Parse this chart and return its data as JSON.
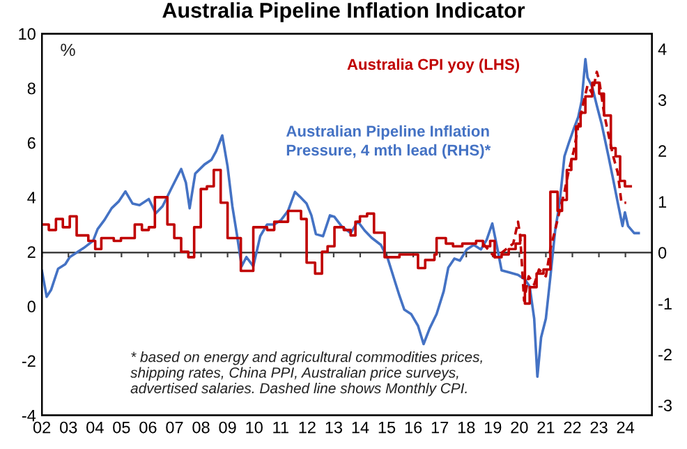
{
  "chart_data": {
    "type": "line",
    "title": "Australia Pipeline Inflation Indicator",
    "xlim": [
      2,
      25
    ],
    "xticks": [
      {
        "value": 2,
        "label": "02"
      },
      {
        "value": 3,
        "label": "03"
      },
      {
        "value": 4,
        "label": "04"
      },
      {
        "value": 5,
        "label": "05"
      },
      {
        "value": 6,
        "label": "06"
      },
      {
        "value": 7,
        "label": "07"
      },
      {
        "value": 8,
        "label": "08"
      },
      {
        "value": 9,
        "label": "09"
      },
      10,
      11,
      12,
      13,
      14,
      15,
      16,
      17,
      18,
      19,
      20,
      21,
      22,
      23,
      24
    ],
    "ylim": [
      -4,
      10
    ],
    "yticks": [
      -4,
      -2,
      0,
      2,
      4,
      6,
      8,
      10
    ],
    "y2lim": [
      -3.2,
      4.3
    ],
    "y2ticks": [
      -3,
      -2,
      -1,
      0,
      1,
      2,
      3,
      4
    ],
    "grid": false,
    "legend": false,
    "ref_lines": [
      {
        "axis": "y2",
        "value": 0,
        "color": "#404040"
      }
    ],
    "annotations": [
      "%",
      "* based on energy and agricultural commodities prices,\nshipping rates, China PPI, Australian price surveys,\nadvertised salaries. Dashed line shows Monthly CPI."
    ],
    "series": [
      {
        "name": "Australia CPI yoy (LHS)",
        "type": "step",
        "color": "#c00000",
        "line_style": "solid",
        "x": [
          2.0,
          2.26,
          2.53,
          2.79,
          3.05,
          3.31,
          3.75,
          4.01,
          4.24,
          4.71,
          4.98,
          5.5,
          5.77,
          6.03,
          6.26,
          6.73,
          6.99,
          7.25,
          7.52,
          7.74,
          7.99,
          8.22,
          8.48,
          8.74,
          9.0,
          9.5,
          9.97,
          10.49,
          10.76,
          11.28,
          11.77,
          11.98,
          12.3,
          12.56,
          12.77,
          13.03,
          13.38,
          13.64,
          13.82,
          13.99,
          14.26,
          14.52,
          14.92,
          15.48,
          16.18,
          16.45,
          16.8,
          16.88,
          17.23,
          17.5,
          17.85,
          18.37,
          18.63,
          18.9,
          19.07,
          19.33,
          19.6,
          19.86,
          20.03,
          20.21,
          20.39,
          20.65,
          20.91,
          21.17,
          21.44,
          21.61,
          21.79,
          21.96,
          22.14,
          22.31,
          22.49,
          22.75,
          23.01,
          23.19,
          23.45,
          23.63,
          23.8,
          23.98,
          24.2
        ],
        "values": [
          3.0,
          2.8,
          3.2,
          2.9,
          3.3,
          2.6,
          2.4,
          2.1,
          2.5,
          2.4,
          2.5,
          3.0,
          2.8,
          2.9,
          4.0,
          3.0,
          2.5,
          2.0,
          1.8,
          2.9,
          4.3,
          4.4,
          5.0,
          3.8,
          2.5,
          1.3,
          2.9,
          2.8,
          3.1,
          3.5,
          3.2,
          1.6,
          1.2,
          2.0,
          2.2,
          2.9,
          2.8,
          2.6,
          3.1,
          3.3,
          3.4,
          2.7,
          1.8,
          1.9,
          1.4,
          1.7,
          1.9,
          2.5,
          2.3,
          2.2,
          2.3,
          2.4,
          2.2,
          2.4,
          1.8,
          1.9,
          2.1,
          2.3,
          2.6,
          0.1,
          0.7,
          1.2,
          1.35,
          4.2,
          3.5,
          3.9,
          5.0,
          5.4,
          6.6,
          7.1,
          7.7,
          8.2,
          7.8,
          7.0,
          5.8,
          5.5,
          4.6,
          4.4,
          4.4
        ]
      },
      {
        "color": "#c00000",
        "line_style": "dashed",
        "x": [
          18.63,
          18.9,
          19.07,
          19.25,
          19.51,
          19.77,
          19.95,
          20.03,
          20.18,
          20.35,
          20.56,
          20.74,
          21.0,
          21.17,
          21.35,
          21.52,
          21.7,
          21.87,
          22.05,
          22.22,
          22.4,
          22.57,
          22.75,
          22.92,
          23.01,
          23.19,
          23.36,
          23.54,
          23.71,
          23.85,
          24.03
        ],
        "values": [
          2.3,
          2.0,
          1.8,
          1.9,
          2.1,
          2.3,
          3.1,
          2.6,
          0.2,
          1.1,
          0.8,
          1.35,
          1.1,
          2.1,
          2.8,
          3.5,
          4.2,
          5.0,
          5.7,
          6.6,
          7.4,
          8.1,
          7.8,
          8.6,
          8.3,
          7.1,
          6.3,
          5.5,
          4.9,
          3.8,
          3.8
        ]
      },
      {
        "name": "Australian Pipeline Inflation\nPressure, 4 mth lead (RHS)*",
        "axis": "y2",
        "color": "#4472c4",
        "line_style": "solid",
        "x": [
          2.0,
          2.18,
          2.35,
          2.61,
          2.88,
          3.05,
          3.31,
          3.58,
          3.93,
          4.1,
          4.36,
          4.63,
          4.89,
          5.15,
          5.42,
          5.68,
          6.03,
          6.29,
          6.55,
          6.9,
          7.25,
          7.43,
          7.57,
          7.78,
          8.13,
          8.39,
          8.57,
          8.8,
          9.0,
          9.18,
          9.35,
          9.53,
          9.71,
          9.97,
          10.23,
          10.49,
          10.76,
          11.02,
          11.28,
          11.54,
          11.72,
          11.98,
          12.16,
          12.33,
          12.6,
          12.86,
          13.03,
          13.29,
          13.64,
          13.91,
          14.17,
          14.43,
          14.78,
          15.04,
          15.31,
          15.48,
          15.66,
          15.92,
          16.18,
          16.39,
          16.62,
          16.88,
          17.15,
          17.32,
          17.55,
          17.76,
          18.02,
          18.28,
          18.55,
          18.77,
          18.98,
          19.16,
          19.33,
          19.6,
          19.95,
          20.21,
          20.39,
          20.56,
          20.68,
          20.82,
          21.0,
          21.17,
          21.35,
          21.52,
          21.7,
          21.87,
          22.05,
          22.22,
          22.35,
          22.49,
          22.57,
          22.75,
          22.92,
          23.1,
          23.36,
          23.54,
          23.71,
          23.89,
          23.98,
          24.1,
          24.33,
          24.5
        ],
        "values": [
          -0.36,
          -0.87,
          -0.73,
          -0.32,
          -0.23,
          -0.09,
          0.0,
          0.09,
          0.23,
          0.46,
          0.64,
          0.87,
          1.0,
          1.2,
          0.96,
          0.93,
          1.05,
          0.77,
          0.91,
          1.28,
          1.64,
          1.37,
          0.87,
          1.55,
          1.73,
          1.82,
          1.99,
          2.3,
          1.69,
          0.91,
          0.36,
          -0.27,
          -0.09,
          -0.27,
          0.32,
          0.55,
          0.55,
          0.64,
          0.82,
          1.19,
          1.1,
          0.96,
          0.73,
          0.36,
          0.32,
          0.73,
          0.7,
          0.52,
          0.38,
          0.61,
          0.43,
          0.29,
          0.15,
          -0.12,
          -0.57,
          -0.85,
          -1.12,
          -1.21,
          -1.44,
          -1.8,
          -1.49,
          -1.21,
          -0.76,
          -0.3,
          -0.12,
          -0.16,
          0.06,
          0.15,
          0.06,
          0.25,
          0.57,
          0.11,
          -0.35,
          -0.39,
          -0.44,
          -0.53,
          -0.67,
          -1.3,
          -2.44,
          -1.67,
          -1.3,
          -0.48,
          0.43,
          0.98,
          1.89,
          2.16,
          2.43,
          2.66,
          2.98,
          3.8,
          3.44,
          3.25,
          2.89,
          2.53,
          1.89,
          1.43,
          0.98,
          0.52,
          0.79,
          0.52,
          0.38,
          0.38
        ]
      }
    ]
  }
}
